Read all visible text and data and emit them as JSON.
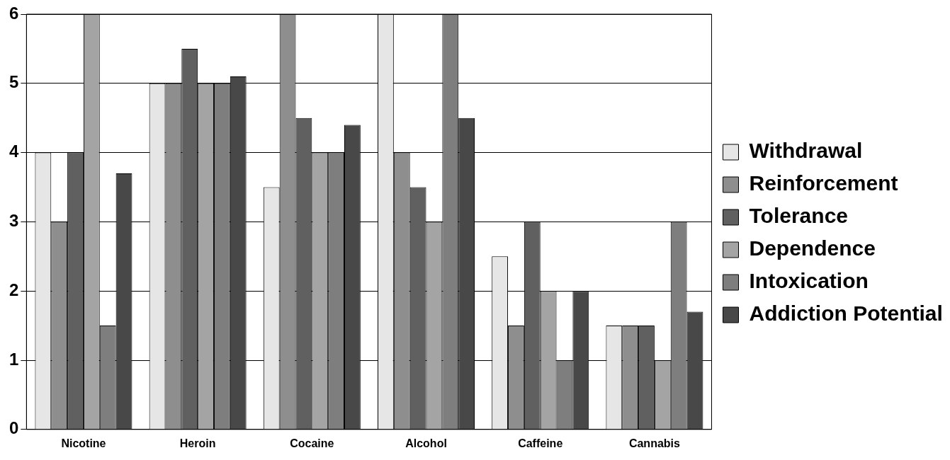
{
  "chart_data": {
    "type": "bar",
    "categories": [
      "Nicotine",
      "Heroin",
      "Cocaine",
      "Alcohol",
      "Caffeine",
      "Cannabis"
    ],
    "series": [
      {
        "name": "Withdrawal",
        "color": "#e6e6e6",
        "values": [
          4,
          5,
          3.5,
          6,
          2.5,
          1.5
        ]
      },
      {
        "name": "Reinforcement",
        "color": "#8e8e8e",
        "values": [
          3,
          5,
          6,
          4,
          1.5,
          1.5
        ]
      },
      {
        "name": "Tolerance",
        "color": "#606060",
        "values": [
          4,
          5.5,
          4.5,
          3.5,
          3,
          1.5
        ]
      },
      {
        "name": "Dependence",
        "color": "#a4a4a4",
        "values": [
          6,
          5,
          4,
          3,
          2,
          1
        ]
      },
      {
        "name": "Intoxication",
        "color": "#7e7e7e",
        "values": [
          1.5,
          5,
          4,
          6,
          1,
          3
        ]
      },
      {
        "name": "Addiction Potential",
        "color": "#484848",
        "values": [
          3.7,
          5.1,
          4.4,
          4.5,
          2,
          1.7
        ]
      }
    ],
    "ylim": [
      0,
      6
    ],
    "yticks": [
      0,
      1,
      2,
      3,
      4,
      5,
      6
    ],
    "grid": "y",
    "legend": "right"
  }
}
